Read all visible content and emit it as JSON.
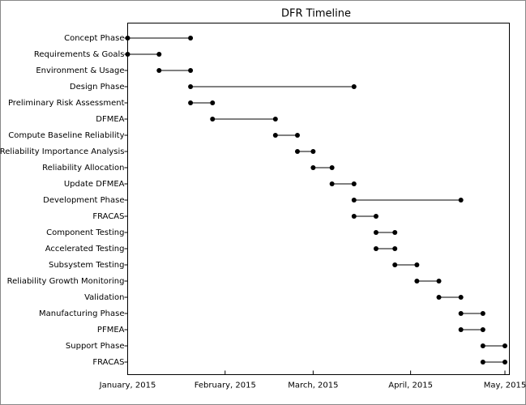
{
  "chart_data": {
    "type": "dumbbell",
    "title": "DFR Timeline",
    "categories": [
      "Concept Phase",
      "Requirements & Goals",
      "Environment & Usage",
      "Design Phase",
      "Preliminary Risk Assessment",
      "DFMEA",
      "Compute Baseline Reliability",
      "Reliability Importance Analysis",
      "Reliability Allocation",
      "Update DFMEA",
      "Development Phase",
      "FRACAS",
      "Component Testing",
      "Accelerated Testing",
      "Subsystem Testing",
      "Reliability Growth Monitoring",
      "Validation",
      "Manufacturing Phase",
      "PFMEA",
      "Support Phase",
      "FRACAS"
    ],
    "start": [
      "2015-01-01",
      "2015-01-01",
      "2015-01-11",
      "2015-01-21",
      "2015-01-21",
      "2015-01-28",
      "2015-02-17",
      "2015-02-24",
      "2015-03-01",
      "2015-03-07",
      "2015-03-14",
      "2015-03-14",
      "2015-03-21",
      "2015-03-21",
      "2015-03-27",
      "2015-04-03",
      "2015-04-10",
      "2015-04-17",
      "2015-04-17",
      "2015-04-24",
      "2015-04-24"
    ],
    "end": [
      "2015-01-21",
      "2015-01-11",
      "2015-01-21",
      "2015-03-14",
      "2015-01-28",
      "2015-02-17",
      "2015-02-24",
      "2015-03-01",
      "2015-03-07",
      "2015-03-14",
      "2015-04-17",
      "2015-03-21",
      "2015-03-27",
      "2015-03-27",
      "2015-04-03",
      "2015-04-10",
      "2015-04-17",
      "2015-04-24",
      "2015-04-24",
      "2015-05-01",
      "2015-05-01"
    ],
    "color": "#000000",
    "xlim": [
      "2015-01-01",
      "2015-05-01"
    ],
    "xticks": [
      {
        "value": "2015-01-01",
        "label": "January, 2015"
      },
      {
        "value": "2015-02-01",
        "label": "February, 2015"
      },
      {
        "value": "2015-03-01",
        "label": "March, 2015"
      },
      {
        "value": "2015-04-01",
        "label": "April, 2015"
      },
      {
        "value": "2015-05-01",
        "label": "May, 2015"
      }
    ]
  }
}
